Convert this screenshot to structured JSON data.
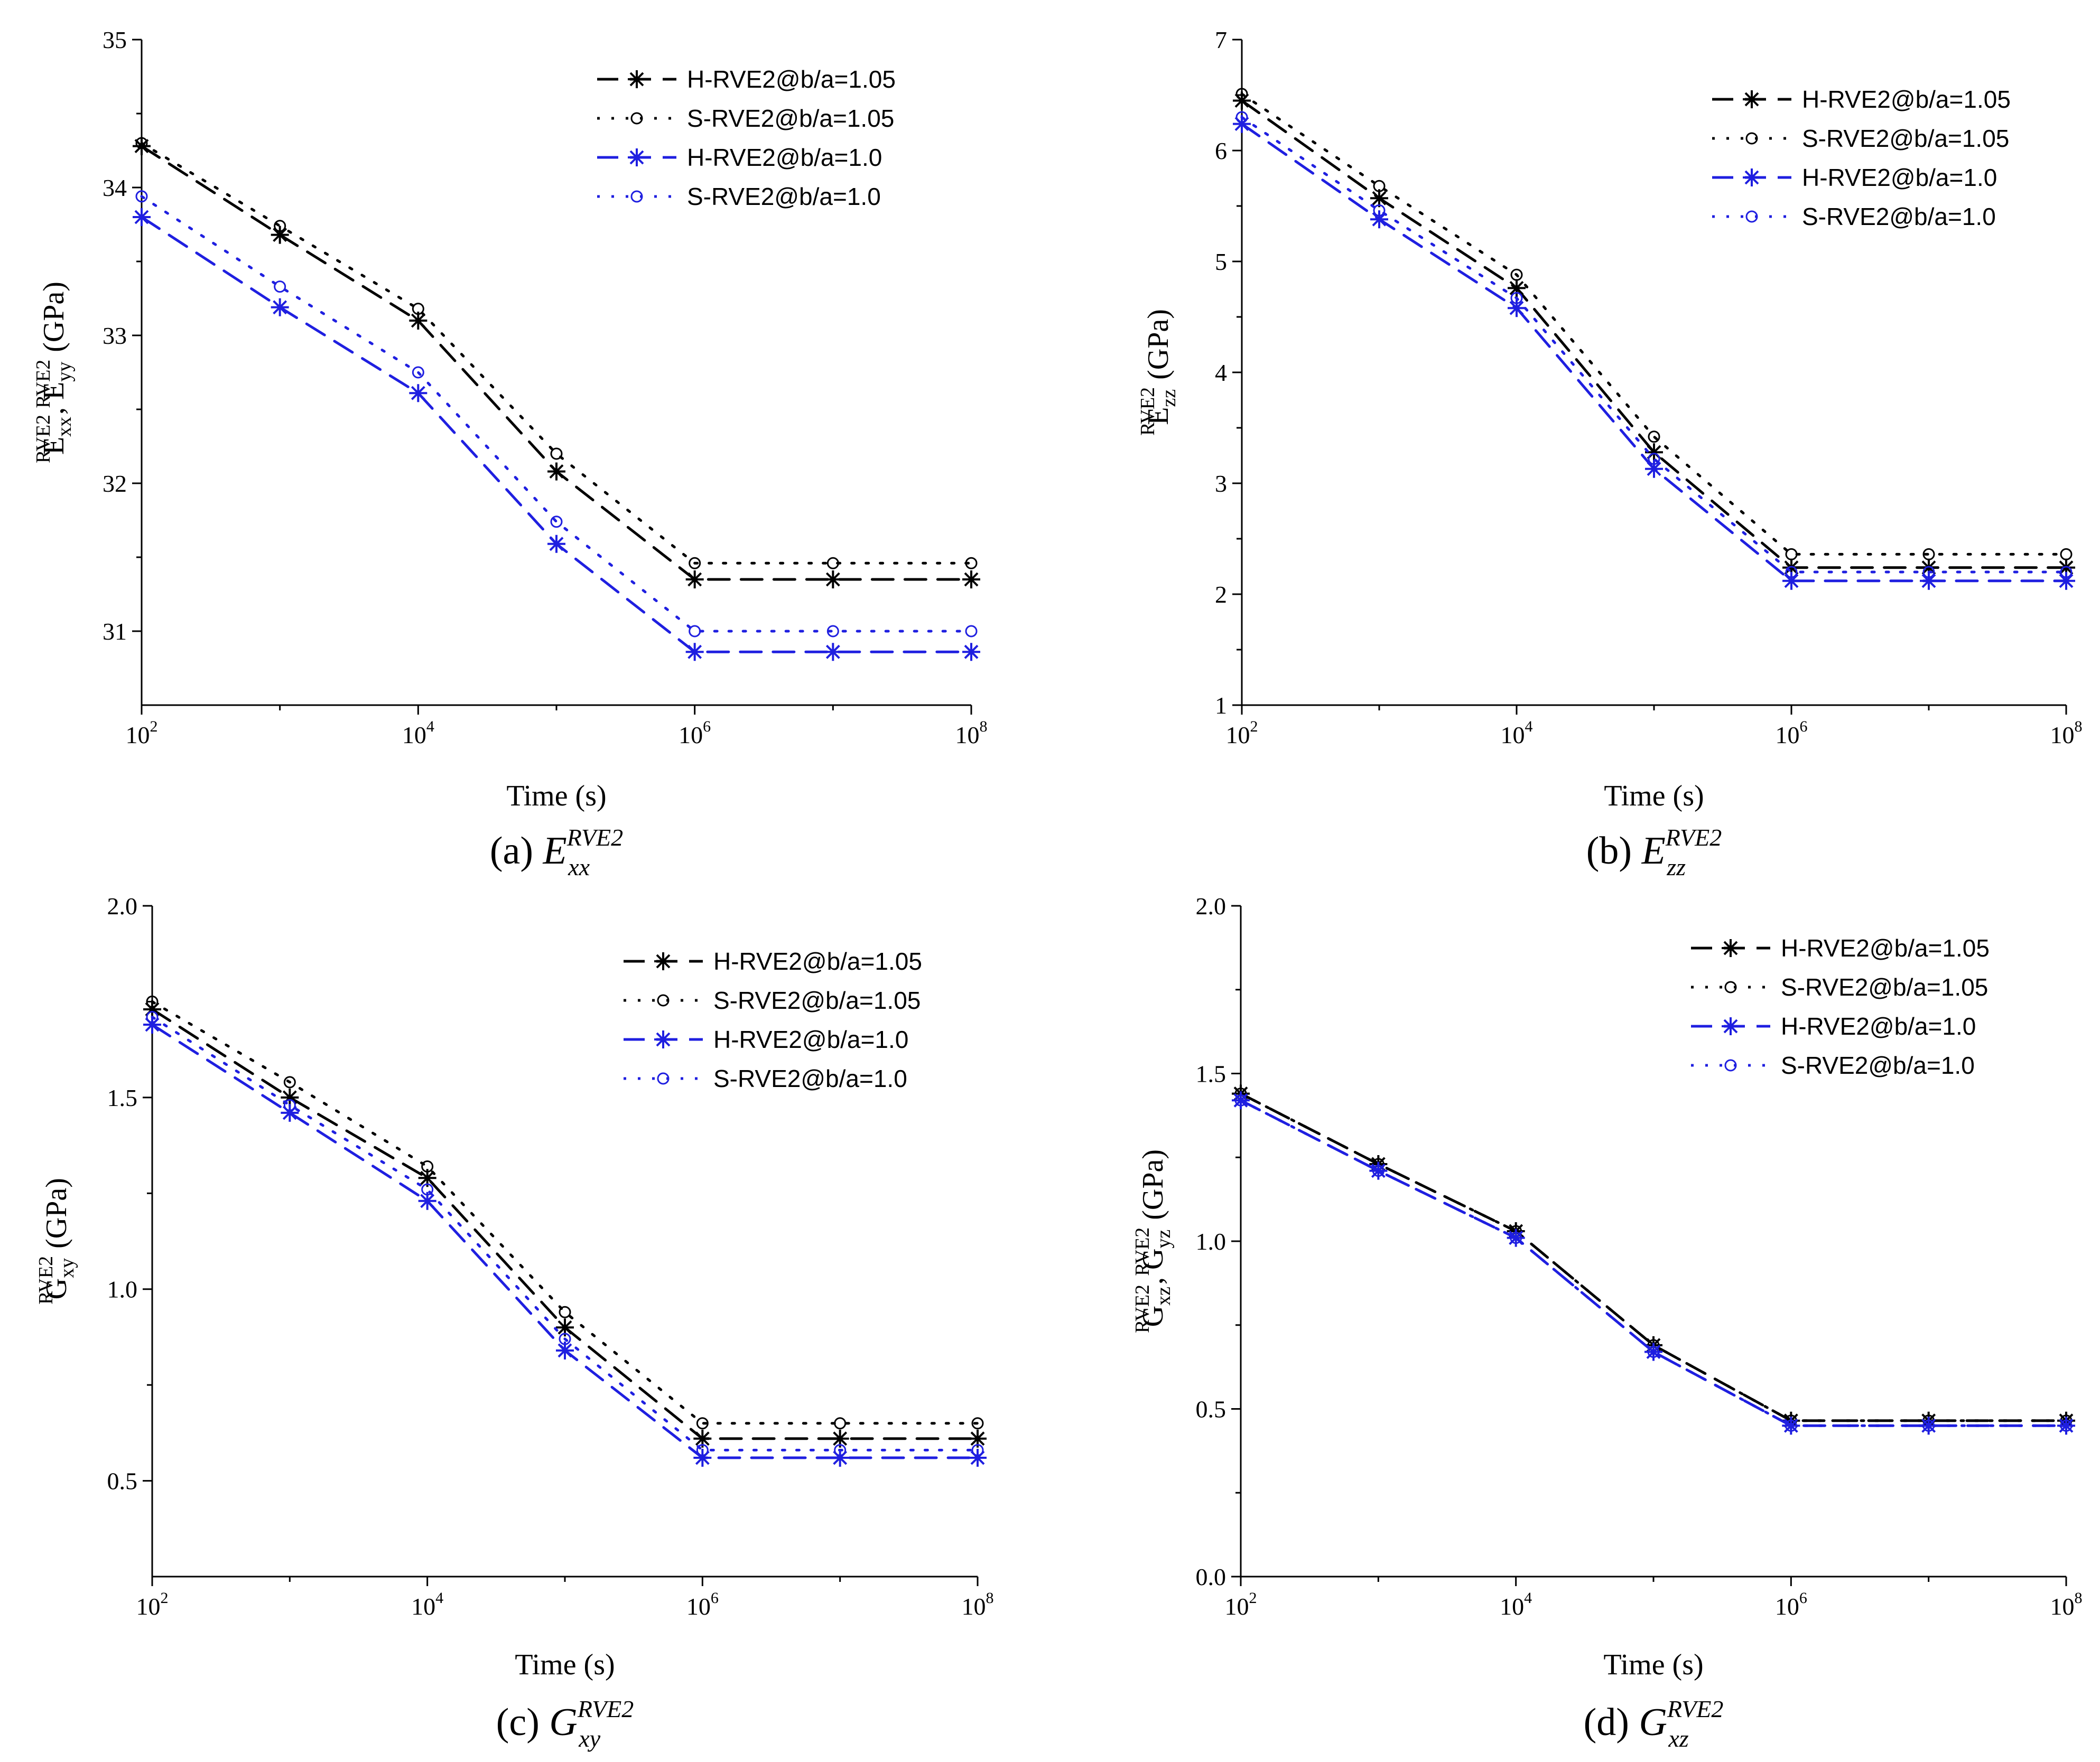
{
  "chart_data": [
    {
      "type": "line",
      "panel": "a",
      "caption": {
        "prefix": "(a) ",
        "symbol": "E",
        "sup": "RVE2",
        "sub": "xx"
      },
      "xlabel": "Time (s)",
      "ylabel_parts": [
        {
          "t": "E",
          "k": "base"
        },
        {
          "t": "xx",
          "k": "sub"
        },
        {
          "t": "RVE2",
          "k": "sup"
        },
        {
          "t": ", E",
          "k": "base"
        },
        {
          "t": "yy",
          "k": "sub"
        },
        {
          "t": "RVE2",
          "k": "sup"
        },
        {
          "t": " (GPa)",
          "k": "base"
        }
      ],
      "x_scale": "log",
      "xlim": [
        100,
        100000000
      ],
      "ylim": [
        30.5,
        35
      ],
      "x_ticks": [
        {
          "base": "10",
          "exp": "2",
          "value": 100
        },
        {
          "base": "10",
          "exp": "4",
          "value": 10000
        },
        {
          "base": "10",
          "exp": "6",
          "value": 1000000
        },
        {
          "base": "10",
          "exp": "8",
          "value": 100000000
        }
      ],
      "y_ticks": [
        {
          "label": "31",
          "value": 31
        },
        {
          "label": "32",
          "value": 32
        },
        {
          "label": "33",
          "value": 33
        },
        {
          "label": "34",
          "value": 34
        },
        {
          "label": "35",
          "value": 35
        }
      ],
      "legend_position": "top-right",
      "x": [
        100,
        1000,
        10000,
        100000,
        1000000,
        10000000,
        100000000
      ],
      "series": [
        {
          "name": "H-RVE2@b/a=1.05",
          "color": "#000000",
          "style": "dash",
          "marker": "star",
          "values": [
            34.28,
            33.68,
            33.1,
            32.08,
            31.35,
            31.35,
            31.35
          ]
        },
        {
          "name": "S-RVE2@b/a=1.05",
          "color": "#000000",
          "style": "dot",
          "marker": "circle",
          "values": [
            34.3,
            33.74,
            33.18,
            32.2,
            31.46,
            31.46,
            31.46
          ]
        },
        {
          "name": "H-RVE2@b/a=1.0",
          "color": "#1f1fe0",
          "style": "dash",
          "marker": "star",
          "values": [
            33.8,
            33.19,
            32.61,
            31.59,
            30.86,
            30.86,
            30.86
          ]
        },
        {
          "name": "S-RVE2@b/a=1.0",
          "color": "#1f1fe0",
          "style": "dot",
          "marker": "circle",
          "values": [
            33.94,
            33.33,
            32.75,
            31.74,
            31.0,
            31.0,
            31.0
          ]
        }
      ]
    },
    {
      "type": "line",
      "panel": "b",
      "caption": {
        "prefix": "(b) ",
        "symbol": "E",
        "sup": "RVE2",
        "sub": "zz"
      },
      "xlabel": "Time (s)",
      "ylabel_parts": [
        {
          "t": "E",
          "k": "base"
        },
        {
          "t": "zz",
          "k": "sub"
        },
        {
          "t": "RVE2",
          "k": "sup"
        },
        {
          "t": " (GPa)",
          "k": "base"
        }
      ],
      "x_scale": "log",
      "xlim": [
        100,
        100000000
      ],
      "ylim": [
        1,
        7
      ],
      "x_ticks": [
        {
          "base": "10",
          "exp": "2",
          "value": 100
        },
        {
          "base": "10",
          "exp": "4",
          "value": 10000
        },
        {
          "base": "10",
          "exp": "6",
          "value": 1000000
        },
        {
          "base": "10",
          "exp": "8",
          "value": 100000000
        }
      ],
      "y_ticks": [
        {
          "label": "1",
          "value": 1
        },
        {
          "label": "2",
          "value": 2
        },
        {
          "label": "3",
          "value": 3
        },
        {
          "label": "4",
          "value": 4
        },
        {
          "label": "5",
          "value": 5
        },
        {
          "label": "6",
          "value": 6
        },
        {
          "label": "7",
          "value": 7
        }
      ],
      "legend_position": "top-right",
      "x": [
        100,
        1000,
        10000,
        100000,
        1000000,
        10000000,
        100000000
      ],
      "series": [
        {
          "name": "H-RVE2@b/a=1.05",
          "color": "#000000",
          "style": "dash",
          "marker": "star",
          "values": [
            6.45,
            5.57,
            4.76,
            3.28,
            2.24,
            2.24,
            2.24
          ]
        },
        {
          "name": "S-RVE2@b/a=1.05",
          "color": "#000000",
          "style": "dot",
          "marker": "circle",
          "values": [
            6.51,
            5.68,
            4.88,
            3.42,
            2.36,
            2.36,
            2.36
          ]
        },
        {
          "name": "H-RVE2@b/a=1.0",
          "color": "#1f1fe0",
          "style": "dash",
          "marker": "star",
          "values": [
            6.24,
            5.38,
            4.58,
            3.13,
            2.12,
            2.12,
            2.12
          ]
        },
        {
          "name": "S-RVE2@b/a=1.0",
          "color": "#1f1fe0",
          "style": "dot",
          "marker": "circle",
          "values": [
            6.3,
            5.46,
            4.67,
            3.22,
            2.2,
            2.2,
            2.2
          ]
        }
      ]
    },
    {
      "type": "line",
      "panel": "c",
      "caption": {
        "prefix": "(c) ",
        "symbol": "G",
        "sup": "RVE2",
        "sub": "xy"
      },
      "xlabel": "Time (s)",
      "ylabel_parts": [
        {
          "t": "G",
          "k": "base"
        },
        {
          "t": "xy",
          "k": "sub"
        },
        {
          "t": "RVE2",
          "k": "sup"
        },
        {
          "t": " (GPa)",
          "k": "base"
        }
      ],
      "x_scale": "log",
      "xlim": [
        100,
        100000000
      ],
      "ylim": [
        0.25,
        2.0
      ],
      "x_ticks": [
        {
          "base": "10",
          "exp": "2",
          "value": 100
        },
        {
          "base": "10",
          "exp": "4",
          "value": 10000
        },
        {
          "base": "10",
          "exp": "6",
          "value": 1000000
        },
        {
          "base": "10",
          "exp": "8",
          "value": 100000000
        }
      ],
      "y_ticks": [
        {
          "label": "0.5",
          "value": 0.5
        },
        {
          "label": "1.0",
          "value": 1.0
        },
        {
          "label": "1.5",
          "value": 1.5
        },
        {
          "label": "2.0",
          "value": 2.0
        }
      ],
      "legend_position": "top-right",
      "x": [
        100,
        1000,
        10000,
        100000,
        1000000,
        10000000,
        100000000
      ],
      "series": [
        {
          "name": "H-RVE2@b/a=1.05",
          "color": "#000000",
          "style": "dash",
          "marker": "star",
          "values": [
            1.73,
            1.5,
            1.29,
            0.9,
            0.61,
            0.61,
            0.61
          ]
        },
        {
          "name": "S-RVE2@b/a=1.05",
          "color": "#000000",
          "style": "dot",
          "marker": "circle",
          "values": [
            1.75,
            1.54,
            1.32,
            0.94,
            0.65,
            0.65,
            0.65
          ]
        },
        {
          "name": "H-RVE2@b/a=1.0",
          "color": "#1f1fe0",
          "style": "dash",
          "marker": "star",
          "values": [
            1.69,
            1.46,
            1.23,
            0.84,
            0.56,
            0.56,
            0.56
          ]
        },
        {
          "name": "S-RVE2@b/a=1.0",
          "color": "#1f1fe0",
          "style": "dot",
          "marker": "circle",
          "values": [
            1.71,
            1.48,
            1.26,
            0.87,
            0.58,
            0.58,
            0.58
          ]
        }
      ]
    },
    {
      "type": "line",
      "panel": "d",
      "caption": {
        "prefix": "(d) ",
        "symbol": "G",
        "sup": "RVE2",
        "sub": "xz"
      },
      "xlabel": "Time (s)",
      "ylabel_parts": [
        {
          "t": "G",
          "k": "base"
        },
        {
          "t": "xz",
          "k": "sub"
        },
        {
          "t": "RVE2",
          "k": "sup"
        },
        {
          "t": ", G",
          "k": "base"
        },
        {
          "t": "yz",
          "k": "sub"
        },
        {
          "t": "RVE2",
          "k": "sup"
        },
        {
          "t": " (GPa)",
          "k": "base"
        }
      ],
      "x_scale": "log",
      "xlim": [
        100,
        100000000
      ],
      "ylim": [
        0.0,
        2.0
      ],
      "x_ticks": [
        {
          "base": "10",
          "exp": "2",
          "value": 100
        },
        {
          "base": "10",
          "exp": "4",
          "value": 10000
        },
        {
          "base": "10",
          "exp": "6",
          "value": 1000000
        },
        {
          "base": "10",
          "exp": "8",
          "value": 100000000
        }
      ],
      "y_ticks": [
        {
          "label": "0.0",
          "value": 0.0
        },
        {
          "label": "0.5",
          "value": 0.5
        },
        {
          "label": "1.0",
          "value": 1.0
        },
        {
          "label": "1.5",
          "value": 1.5
        },
        {
          "label": "2.0",
          "value": 2.0
        }
      ],
      "legend_position": "top-right",
      "x": [
        100,
        1000,
        10000,
        100000,
        1000000,
        10000000,
        100000000
      ],
      "series": [
        {
          "name": "H-RVE2@b/a=1.05",
          "color": "#000000",
          "style": "dash",
          "marker": "star",
          "values": [
            1.44,
            1.23,
            1.03,
            0.69,
            0.465,
            0.465,
            0.465
          ]
        },
        {
          "name": "S-RVE2@b/a=1.05",
          "color": "#000000",
          "style": "dot",
          "marker": "circle",
          "values": [
            1.44,
            1.23,
            1.03,
            0.69,
            0.465,
            0.465,
            0.465
          ]
        },
        {
          "name": "H-RVE2@b/a=1.0",
          "color": "#1f1fe0",
          "style": "dash",
          "marker": "star",
          "values": [
            1.42,
            1.21,
            1.01,
            0.67,
            0.45,
            0.45,
            0.45
          ]
        },
        {
          "name": "S-RVE2@b/a=1.0",
          "color": "#1f1fe0",
          "style": "dot",
          "marker": "circle",
          "values": [
            1.42,
            1.21,
            1.01,
            0.67,
            0.45,
            0.45,
            0.45
          ]
        }
      ]
    }
  ]
}
